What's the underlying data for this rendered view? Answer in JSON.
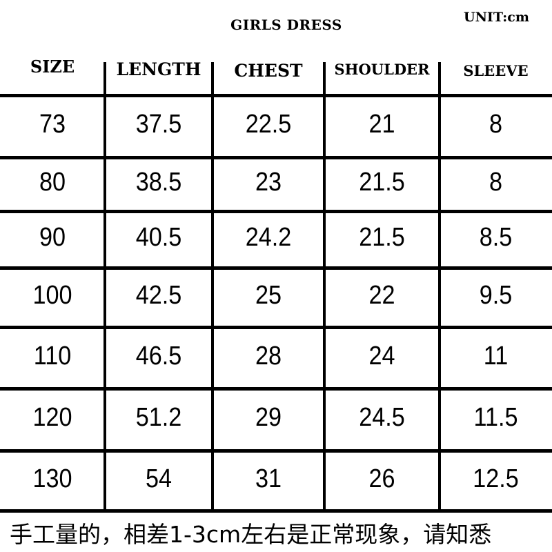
{
  "title": "GIRLS DRESS",
  "unit": "UNIT:cm",
  "headers": [
    "SIZE",
    "LENGTH",
    "CHEST",
    "SHOULDER",
    "SLEEVE"
  ],
  "rows": [
    [
      "73",
      "37.5",
      "22.5",
      "21",
      "8"
    ],
    [
      "80",
      "38.5",
      "23",
      "21.5",
      "8"
    ],
    [
      "90",
      "40.5",
      "24.2",
      "21.5",
      "8.5"
    ],
    [
      "100",
      "42.5",
      "25",
      "22",
      "9.5"
    ],
    [
      "110",
      "46.5",
      "28",
      "24",
      "11"
    ],
    [
      "120",
      "51.2",
      "29",
      "24.5",
      "11.5"
    ],
    [
      "130",
      "54",
      "31",
      "26",
      "12.5"
    ]
  ],
  "note": "手工量的，相差1-3cm左右是正常现象，请知悉"
}
